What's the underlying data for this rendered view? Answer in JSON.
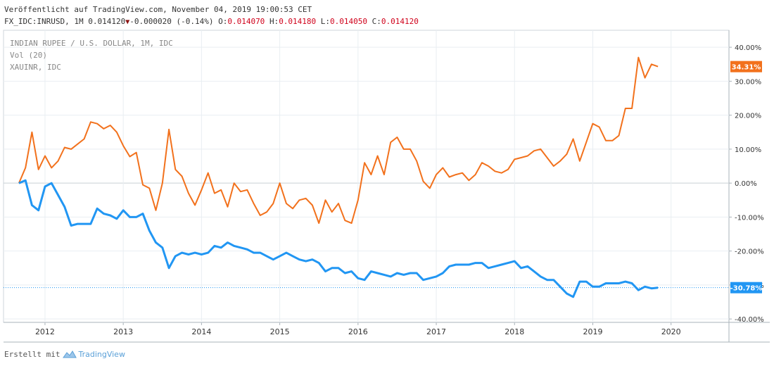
{
  "header": {
    "line1": "Veröffentlicht auf TradingView.com, November 04, 2019 19:00:53 CET",
    "symbol": "FX_IDC:INRUSD, 1M",
    "last": "0.014120",
    "change": "-0.000020 (-0.14%)",
    "o_label": "O:",
    "o": "0.014070",
    "h_label": "H:",
    "h": "0.014180",
    "l_label": "L:",
    "l": "0.014050",
    "c_label": "C:",
    "c": "0.014120"
  },
  "legend": [
    "INDIAN RUPEE / U.S. DOLLAR, 1M, IDC",
    "Vol (20)",
    "XAUINR, IDC"
  ],
  "footer": {
    "prefix": "Erstellt mit",
    "brand": "TradingView"
  },
  "colors": {
    "gold": "#f2711c",
    "inr": "#2196f3",
    "grid": "#e9eef2",
    "red": "#d0021b"
  },
  "chart_data": {
    "type": "line",
    "title": "INDIAN RUPEE / U.S. DOLLAR, 1M, IDC vs XAUINR, IDC",
    "xlabel": "",
    "ylabel": "",
    "x_start": 2011.667,
    "x_end": 2019.833,
    "x_range": [
      2011.47,
      2020.74
    ],
    "x_ticks": [
      "2012",
      "2013",
      "2014",
      "2015",
      "2016",
      "2017",
      "2018",
      "2019",
      "2020"
    ],
    "ylim": [
      -41,
      45
    ],
    "y_ticks": [
      "40.00%",
      "30.00%",
      "20.00%",
      "10.00%",
      "0.00%",
      "-10.00%",
      "-20.00%",
      "-30.00%",
      "-40.00%"
    ],
    "series": [
      {
        "name": "XAUINR, IDC",
        "color": "#f2711c",
        "last_label": "34.31%",
        "values": [
          0,
          4.5,
          15,
          4,
          8,
          4.5,
          6.5,
          10.5,
          10,
          11.5,
          13,
          18,
          17.5,
          16,
          17,
          15,
          11,
          7.8,
          9,
          -0.5,
          -1.5,
          -8,
          0,
          15.8,
          4,
          2,
          -3,
          -6.5,
          -2,
          3,
          -3,
          -2,
          -7,
          0,
          -2.5,
          -2,
          -6,
          -9.5,
          -8.5,
          -6,
          0,
          -6,
          -7.5,
          -5,
          -4.5,
          -6.5,
          -11.8,
          -5,
          -8.5,
          -6,
          -11,
          -11.8,
          -5,
          6,
          2.5,
          8,
          2.5,
          12,
          13.5,
          10,
          10,
          6.5,
          0.5,
          -1.5,
          2.5,
          4.5,
          1.8,
          2.5,
          3,
          0.8,
          2.5,
          6,
          5,
          3.5,
          3,
          4,
          7,
          7.5,
          8,
          9.5,
          10,
          7.5,
          5,
          6.5,
          8.5,
          13,
          6.5,
          12,
          17.5,
          16.5,
          12.5,
          12.5,
          14,
          22,
          22,
          37,
          31,
          35,
          34.3
        ]
      },
      {
        "name": "INDIAN RUPEE / U.S. DOLLAR, 1M, IDC",
        "color": "#2196f3",
        "last_label": "-30.78%",
        "values": [
          0,
          0.8,
          -6.5,
          -8,
          -1,
          0,
          -3.5,
          -7,
          -12.5,
          -12,
          -12,
          -12,
          -7.5,
          -9,
          -9.5,
          -10.5,
          -8,
          -10,
          -10,
          -9,
          -14,
          -17.5,
          -19,
          -25,
          -21.5,
          -20.5,
          -21,
          -20.5,
          -21,
          -20.5,
          -18.5,
          -19,
          -17.5,
          -18.5,
          -19,
          -19.5,
          -20.5,
          -20.5,
          -21.5,
          -22.5,
          -21.5,
          -20.5,
          -21.5,
          -22.5,
          -23,
          -22.5,
          -23.5,
          -26,
          -25,
          -25,
          -26.5,
          -26,
          -28,
          -28.5,
          -26,
          -26.5,
          -27,
          -27.5,
          -26.5,
          -27,
          -26.5,
          -26.5,
          -28.5,
          -28,
          -27.5,
          -26.5,
          -24.5,
          -24,
          -24,
          -24,
          -23.5,
          -23.5,
          -25,
          -24.5,
          -24,
          -23.5,
          -23,
          -25,
          -24.5,
          -26,
          -27.5,
          -28.5,
          -28.5,
          -30.5,
          -32.5,
          -33.5,
          -29,
          -29,
          -30.5,
          -30.5,
          -29.5,
          -29.5,
          -29.5,
          -29,
          -29.5,
          -31.5,
          -30.5,
          -31,
          -30.78
        ]
      }
    ]
  }
}
